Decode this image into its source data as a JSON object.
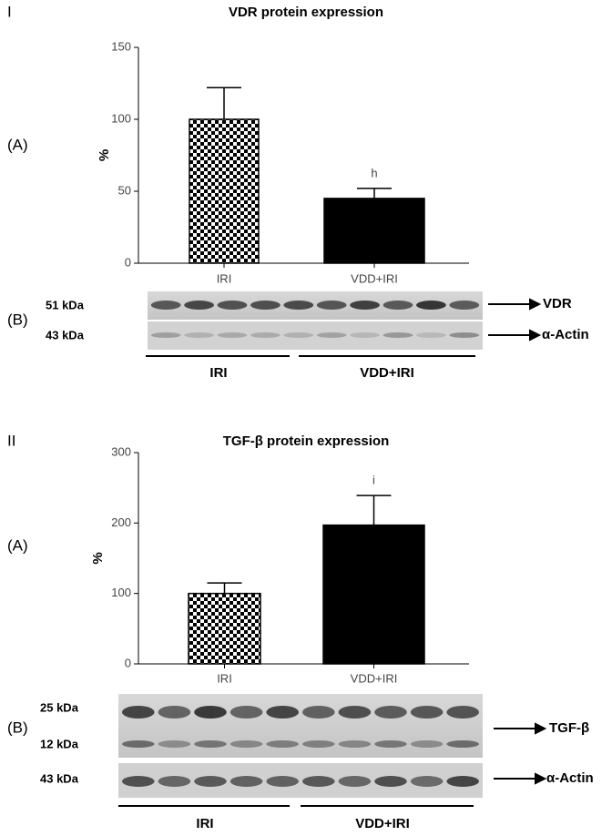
{
  "chart_data": [
    {
      "type": "bar",
      "title": "VDR protein expression",
      "y_label": "%",
      "categories": [
        "IRI",
        "VDD+IRI"
      ],
      "values": [
        100,
        45
      ],
      "errors": [
        22,
        7
      ],
      "bar_labels": [
        null,
        "h"
      ],
      "patterns": [
        "checker",
        "solid"
      ],
      "color": "#000000",
      "ylim": [
        0,
        150
      ],
      "yticks": [
        0,
        50,
        100,
        150
      ]
    },
    {
      "type": "bar",
      "title": "TGF-β protein expression",
      "y_label": "%",
      "categories": [
        "IRI",
        "VDD+IRI"
      ],
      "values": [
        100,
        197
      ],
      "errors": [
        15,
        42
      ],
      "bar_labels": [
        null,
        "i"
      ],
      "patterns": [
        "checker",
        "solid"
      ],
      "color": "#000000",
      "ylim": [
        0,
        300
      ],
      "yticks": [
        0,
        100,
        200,
        300
      ]
    }
  ],
  "figure": {
    "sections": [
      {
        "label": "I",
        "chart_label": "(A)",
        "blot_label": "(B)",
        "kda": [
          "51 kDa",
          "43 kDa"
        ],
        "bands": [
          "VDR",
          "α-Actin"
        ],
        "groups": [
          "IRI",
          "VDD+IRI"
        ]
      },
      {
        "label": "II",
        "chart_label": "(A)",
        "blot_label": "(B)",
        "kda": [
          "25 kDa",
          "12 kDa",
          "43 kDa"
        ],
        "bands": [
          "TGF-β",
          "α-Actin"
        ],
        "groups": [
          "IRI",
          "VDD+IRI"
        ]
      }
    ]
  }
}
